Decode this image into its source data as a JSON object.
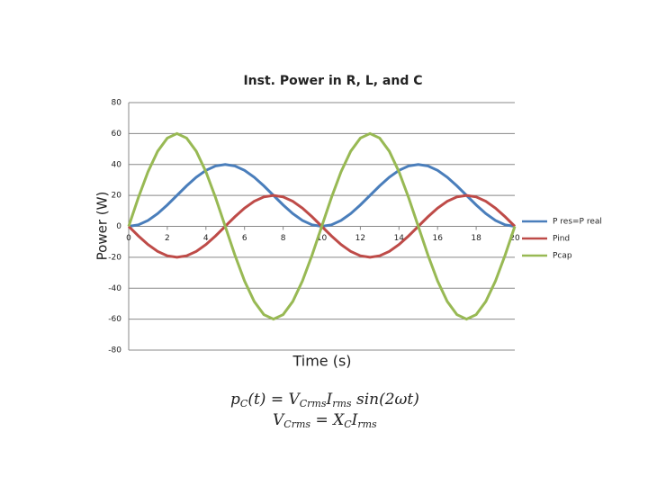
{
  "chart_data": {
    "type": "line",
    "title": "Inst. Power in R, L, and C",
    "x_label": "Time (s)",
    "y_label": "Power (W)",
    "x": [
      0,
      0.5,
      1,
      1.5,
      2,
      2.5,
      3,
      3.5,
      4,
      4.5,
      5,
      5.5,
      6,
      6.5,
      7,
      7.5,
      8,
      8.5,
      9,
      9.5,
      10,
      10.5,
      11,
      11.5,
      12,
      12.5,
      13,
      13.5,
      14,
      14.5,
      15,
      15.5,
      16,
      16.5,
      17,
      17.5,
      18,
      18.5,
      19,
      19.5,
      20
    ],
    "series": [
      {
        "name": "P res=P real",
        "color": "#4a7ebb",
        "values": [
          0,
          0.98,
          3.82,
          8.24,
          13.82,
          20,
          26.18,
          31.76,
          36.18,
          39.02,
          40,
          39.02,
          36.18,
          31.76,
          26.18,
          20,
          13.82,
          8.24,
          3.82,
          0.98,
          0,
          0.98,
          3.82,
          8.24,
          13.82,
          20,
          26.18,
          31.76,
          36.18,
          39.02,
          40,
          39.02,
          36.18,
          31.76,
          26.18,
          20,
          13.82,
          8.24,
          3.82,
          0.98,
          0
        ]
      },
      {
        "name": "Pind",
        "color": "#be4b48",
        "values": [
          0,
          -6.18,
          -11.76,
          -16.18,
          -19.02,
          -20,
          -19.02,
          -16.18,
          -11.76,
          -6.18,
          0,
          6.18,
          11.76,
          16.18,
          19.02,
          20,
          19.02,
          16.18,
          11.76,
          6.18,
          0,
          -6.18,
          -11.76,
          -16.18,
          -19.02,
          -20,
          -19.02,
          -16.18,
          -11.76,
          -6.18,
          0,
          6.18,
          11.76,
          16.18,
          19.02,
          20,
          19.02,
          16.18,
          11.76,
          6.18,
          0
        ]
      },
      {
        "name": "Pcap",
        "color": "#98b954",
        "values": [
          0,
          18.54,
          35.27,
          48.54,
          57.06,
          60,
          57.06,
          48.54,
          35.27,
          18.54,
          0,
          -18.54,
          -35.27,
          -48.54,
          -57.06,
          -60,
          -57.06,
          -48.54,
          -35.27,
          -18.54,
          0,
          18.54,
          35.27,
          48.54,
          57.06,
          60,
          57.06,
          48.54,
          35.27,
          18.54,
          0,
          -18.54,
          -35.27,
          -48.54,
          -57.06,
          -60,
          -57.06,
          -48.54,
          -35.27,
          -18.54,
          0
        ]
      }
    ],
    "xlim": [
      0,
      20
    ],
    "xticks": [
      0,
      2,
      4,
      6,
      8,
      10,
      12,
      14,
      16,
      18,
      20
    ],
    "ylim": [
      -80,
      80
    ],
    "yticks": [
      -80,
      -60,
      -40,
      -20,
      0,
      20,
      40,
      60,
      80
    ],
    "grid": true,
    "legend": "right"
  },
  "equations": [
    [
      "p",
      "C",
      "(t) = V",
      "Crms",
      "I",
      "rms",
      " sin(2ωt)"
    ],
    [
      "V",
      "Crms",
      " = X",
      "C",
      "I",
      "rms"
    ]
  ]
}
